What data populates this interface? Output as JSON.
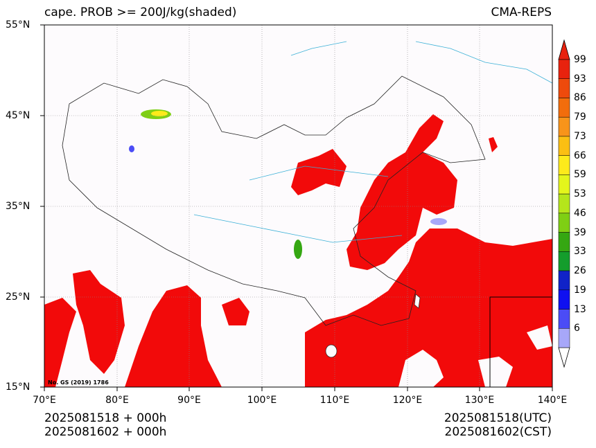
{
  "title_left": "cape. PROB >= 200J/kg(shaded)",
  "title_right": "CMA-REPS",
  "lat_labels": [
    "55°N",
    "45°N",
    "35°N",
    "25°N",
    "15°N"
  ],
  "lon_labels": [
    "70°E",
    "80°E",
    "90°E",
    "100°E",
    "110°E",
    "120°E",
    "130°E",
    "140°E"
  ],
  "colorbar": {
    "levels": [
      "99",
      "93",
      "86",
      "79",
      "73",
      "66",
      "59",
      "53",
      "46",
      "39",
      "33",
      "26",
      "19",
      "13",
      "6"
    ],
    "colors": [
      "#e8220e",
      "#ee4a0c",
      "#f26d0c",
      "#f8941a",
      "#fbbf13",
      "#fdea1b",
      "#e4f51c",
      "#b5e51b",
      "#7fcf14",
      "#35a712",
      "#149d2c",
      "#1023c8",
      "#0f10f0",
      "#4b4cf6",
      "#a7a7f9"
    ]
  },
  "shading_color": "#f20a0a",
  "gs_note": "No. GS (2019) 1786",
  "footer": {
    "init_utc": "2025081518  +  000h",
    "init_cst": "2025081602  +  000h",
    "valid_utc": "2025081518(UTC)",
    "valid_cst": "2025081602(CST)"
  }
}
